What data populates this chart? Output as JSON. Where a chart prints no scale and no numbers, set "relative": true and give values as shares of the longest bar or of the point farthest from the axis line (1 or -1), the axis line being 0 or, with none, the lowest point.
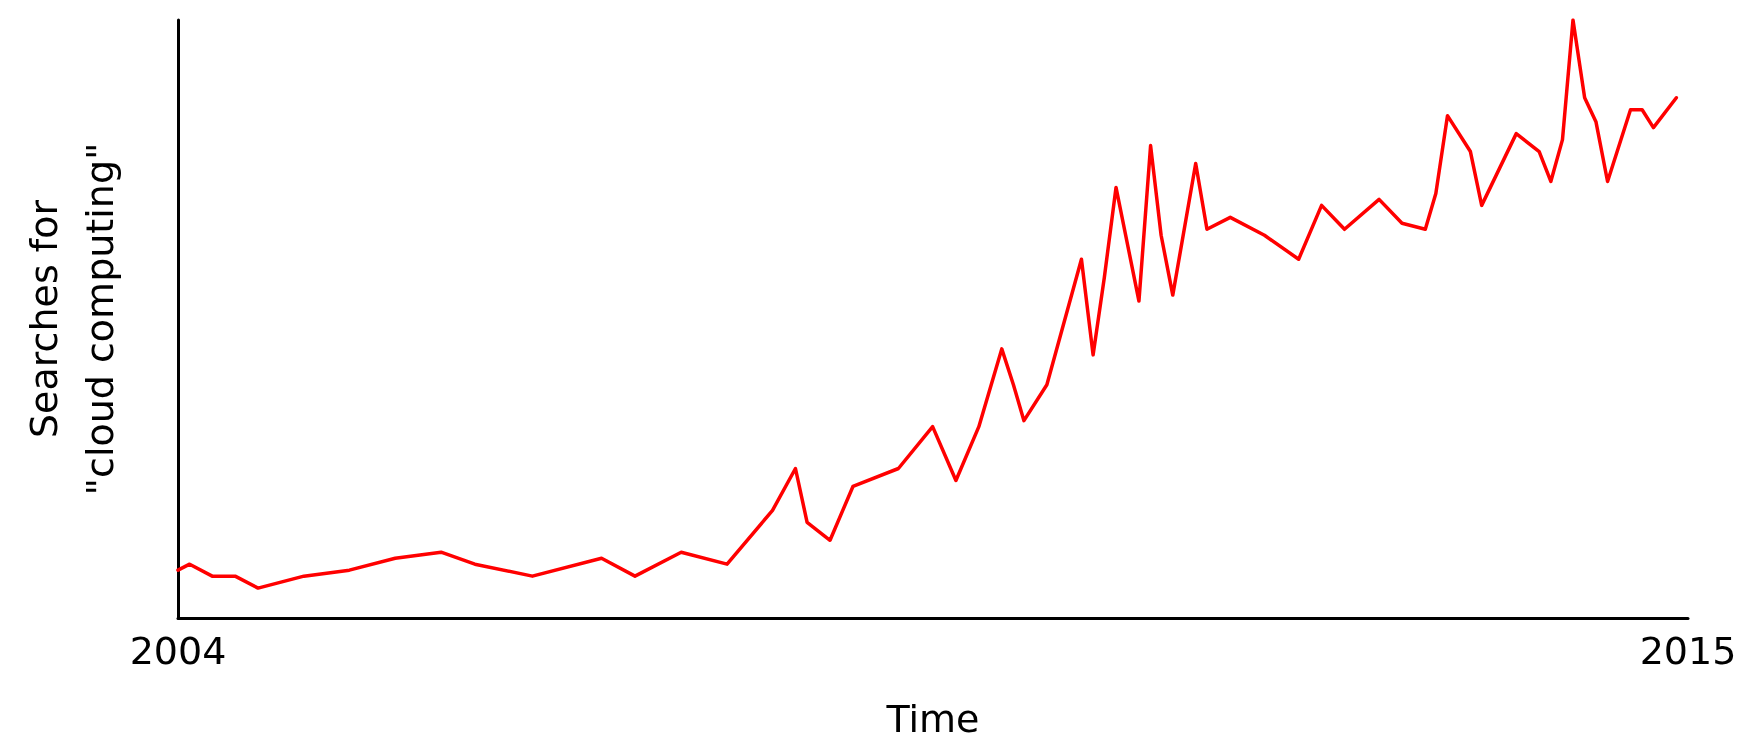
{
  "chart_data": {
    "type": "line",
    "xlabel": "Time",
    "ylabel": "Searches for\n\"cloud computing\"",
    "relative": true,
    "grid": false,
    "marker": "none",
    "line_style": "solid",
    "xlim": [
      "2004",
      "2015"
    ],
    "xticks": [
      "2004",
      "2015"
    ],
    "x": [
      "2004-01",
      "2004-02",
      "2004-04",
      "2004-06",
      "2004-08",
      "2004-12",
      "2005-04",
      "2005-08",
      "2005-12",
      "2006-03",
      "2006-08",
      "2007-02",
      "2007-05",
      "2007-09",
      "2008-01",
      "2008-05",
      "2008-07",
      "2008-08",
      "2008-10",
      "2008-12",
      "2009-04",
      "2009-07",
      "2009-09",
      "2009-11",
      "2010-01",
      "2010-02",
      "2010-03",
      "2010-05",
      "2010-08",
      "2010-09",
      "2010-10",
      "2010-11",
      "2011-01",
      "2011-02",
      "2011-03",
      "2011-04",
      "2011-06",
      "2011-07",
      "2011-09",
      "2011-12",
      "2012-03",
      "2012-05",
      "2012-07",
      "2012-10",
      "2012-12",
      "2013-02",
      "2013-03",
      "2013-04",
      "2013-06",
      "2013-07",
      "2013-10",
      "2013-12",
      "2014-01",
      "2014-02",
      "2014-03",
      "2014-04",
      "2014-05",
      "2014-06",
      "2014-08",
      "2014-09",
      "2014-10",
      "2014-12"
    ],
    "series": [
      {
        "color": "#ff0000",
        "values": [
          0.08,
          0.09,
          0.07,
          0.07,
          0.05,
          0.07,
          0.08,
          0.1,
          0.11,
          0.09,
          0.07,
          0.1,
          0.07,
          0.11,
          0.09,
          0.18,
          0.25,
          0.16,
          0.13,
          0.22,
          0.25,
          0.32,
          0.23,
          0.32,
          0.45,
          0.39,
          0.33,
          0.39,
          0.6,
          0.44,
          0.57,
          0.72,
          0.53,
          0.79,
          0.64,
          0.54,
          0.76,
          0.65,
          0.67,
          0.64,
          0.6,
          0.69,
          0.65,
          0.7,
          0.66,
          0.65,
          0.71,
          0.84,
          0.78,
          0.69,
          0.81,
          0.78,
          0.73,
          0.8,
          1,
          0.87,
          0.83,
          0.73,
          0.85,
          0.85,
          0.82,
          0.87
        ]
      }
    ]
  }
}
